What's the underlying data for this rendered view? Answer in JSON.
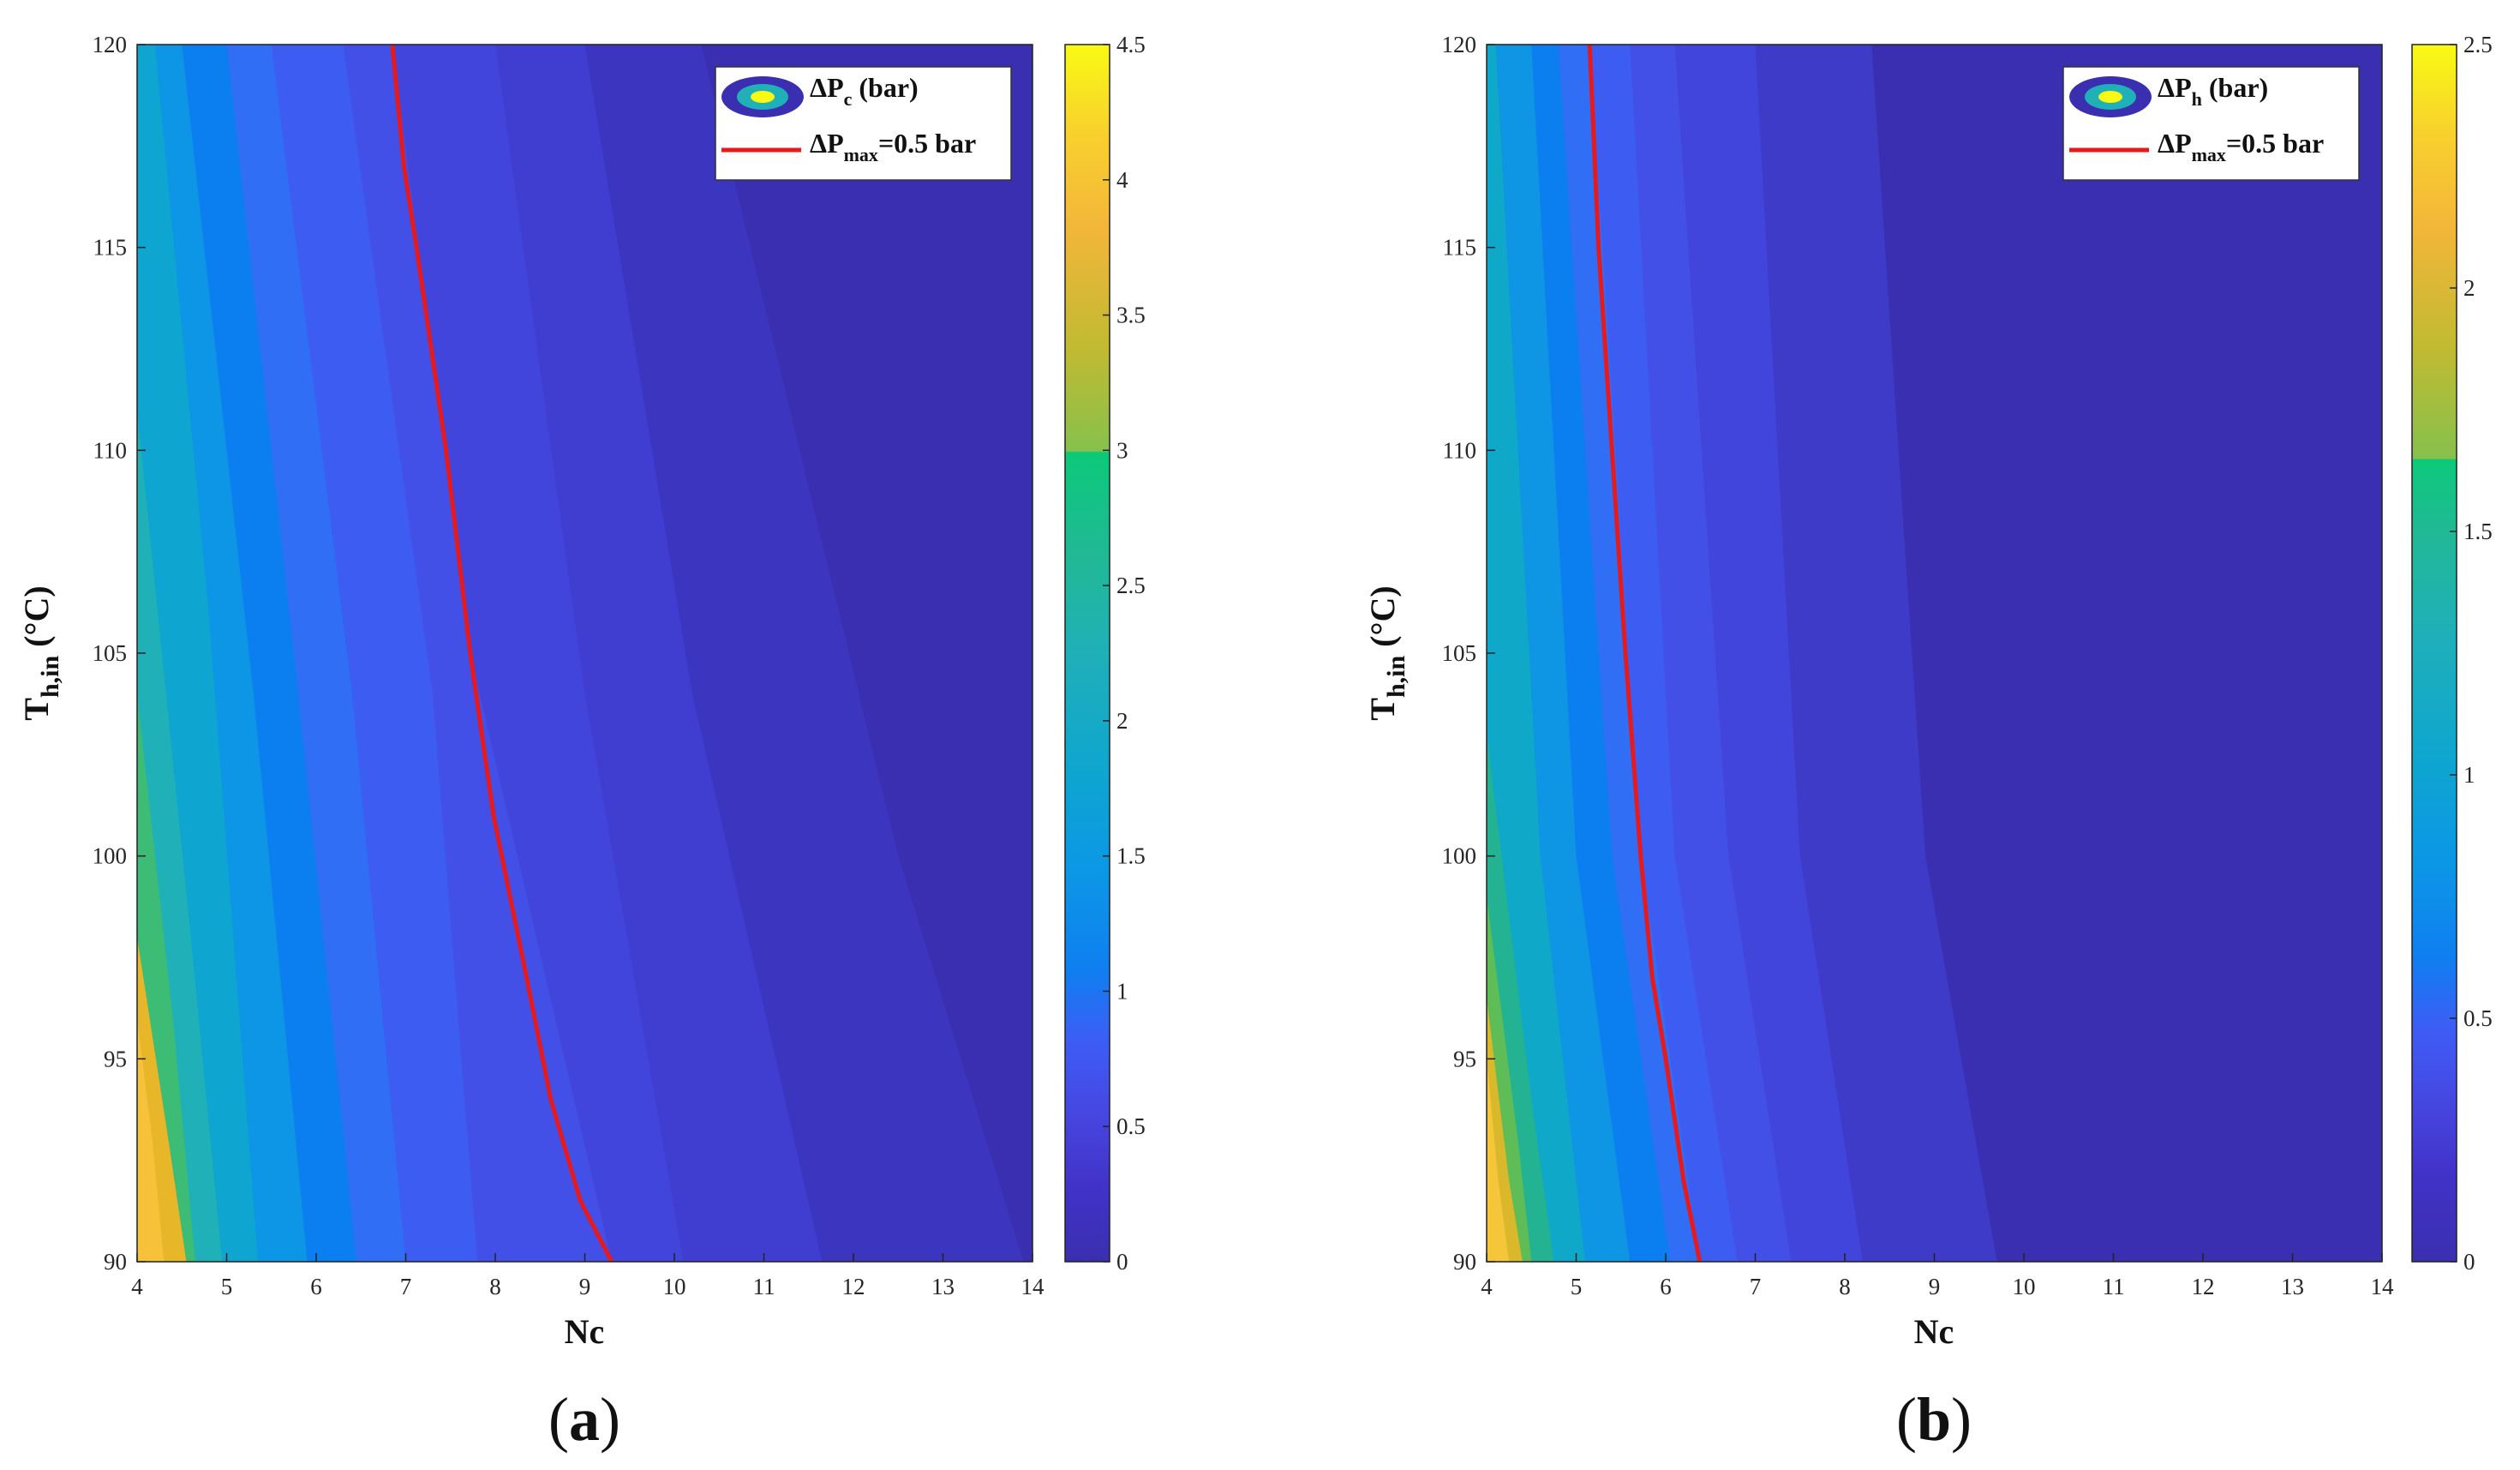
{
  "chart_data": [
    {
      "type": "contour",
      "panel_label": "(a)",
      "panel_letter": "a",
      "xlabel": "Nc",
      "ylabel": {
        "base": "T",
        "sub": "h,in",
        "unit": "(°C)"
      },
      "xlim": [
        4,
        14
      ],
      "ylim": [
        90,
        120
      ],
      "x_ticks": [
        "4",
        "5",
        "6",
        "7",
        "8",
        "9",
        "10",
        "11",
        "12",
        "13",
        "14"
      ],
      "y_ticks": [
        "90",
        "95",
        "100",
        "105",
        "110",
        "115",
        "120"
      ],
      "colorbar": {
        "range": [
          0,
          4.5
        ],
        "ticks": [
          "0",
          "0.5",
          "1",
          "1.5",
          "2",
          "2.5",
          "3",
          "3.5",
          "4",
          "4.5"
        ]
      },
      "legend": {
        "contour_entry": {
          "prefix": "ΔP",
          "sub": "c",
          "suffix": " (bar)"
        },
        "line_entry": {
          "prefix": "ΔP",
          "sub": "max",
          "suffix": "=0.5 bar"
        }
      },
      "constraint_line": {
        "label": "ΔPmax=0.5 bar",
        "color": "#e8191b",
        "points": [
          [
            6.85,
            120
          ],
          [
            6.98,
            117
          ],
          [
            7.12,
            115
          ],
          [
            7.45,
            110
          ],
          [
            7.72,
            105
          ],
          [
            7.98,
            101
          ],
          [
            8.35,
            97
          ],
          [
            8.62,
            94
          ],
          [
            8.95,
            91.5
          ],
          [
            9.3,
            90
          ]
        ]
      },
      "contour_bands": [
        {
          "color": "#f7c23a",
          "level_label": "ΔP ≈ 4.0",
          "boundary": [
            [
              4.0,
              96
            ],
            [
              4.17,
              93
            ],
            [
              4.3,
              90
            ]
          ]
        },
        {
          "color": "#e7b629",
          "level_label": "ΔP ≈ 3.5",
          "boundary": [
            [
              4.0,
              98
            ],
            [
              4.35,
              93
            ],
            [
              4.55,
              90
            ]
          ]
        },
        {
          "color": "#3cbc74",
          "level_label": "ΔP ≈ 2.5",
          "boundary": [
            [
              4.0,
              104
            ],
            [
              4.4,
              96
            ],
            [
              4.65,
              90
            ]
          ]
        },
        {
          "color": "#1fb0b8",
          "level_label": "ΔP ≈ 2.0",
          "boundary": [
            [
              4.0,
              111
            ],
            [
              4.6,
              98
            ],
            [
              4.95,
              90
            ]
          ]
        },
        {
          "color": "#0ea5d0",
          "level_label": "ΔP ≈ 1.75",
          "boundary": [
            [
              4.2,
              120
            ],
            [
              4.8,
              106
            ],
            [
              5.35,
              90
            ]
          ]
        },
        {
          "color": "#0d95e6",
          "level_label": "ΔP ≈ 1.5",
          "boundary": [
            [
              4.5,
              120
            ],
            [
              5.3,
              104
            ],
            [
              5.9,
              90
            ]
          ]
        },
        {
          "color": "#0c7ff0",
          "level_label": "ΔP ≈ 1.0",
          "boundary": [
            [
              5.0,
              120
            ],
            [
              5.8,
              104
            ],
            [
              6.45,
              90
            ]
          ]
        },
        {
          "color": "#2f6ef5",
          "level_label": "ΔP ≈ 0.75",
          "boundary": [
            [
              5.5,
              120
            ],
            [
              6.4,
              104
            ],
            [
              7.0,
              90
            ]
          ]
        },
        {
          "color": "#3d5cf2",
          "level_label": "ΔP ≈ 0.625",
          "boundary": [
            [
              6.3,
              120
            ],
            [
              7.3,
              104
            ],
            [
              7.8,
              90
            ]
          ]
        },
        {
          "color": "#4350e8",
          "level_label": "ΔP ≈ 0.5",
          "boundary": [
            [
              6.85,
              120
            ],
            [
              7.72,
              105
            ],
            [
              9.3,
              90
            ]
          ]
        },
        {
          "color": "#4245dc",
          "level_label": "ΔP ≈ 0.4",
          "boundary": [
            [
              8.0,
              120
            ],
            [
              9.0,
              104
            ],
            [
              10.1,
              90
            ]
          ]
        },
        {
          "color": "#3f3ed0",
          "level_label": "ΔP ≈ 0.3",
          "boundary": [
            [
              9.0,
              120
            ],
            [
              10.2,
              104
            ],
            [
              11.65,
              90
            ]
          ]
        },
        {
          "color": "#3b35c0",
          "level_label": "ΔP ≈ 0.2",
          "boundary": [
            [
              10.3,
              120
            ],
            [
              12.5,
              100
            ],
            [
              13.9,
              90
            ]
          ]
        }
      ],
      "base_color": "#3a2fb0"
    },
    {
      "type": "contour",
      "panel_label": "(b)",
      "panel_letter": "b",
      "xlabel": "Nc",
      "ylabel": {
        "base": "T",
        "sub": "h,in",
        "unit": "(°C)"
      },
      "xlim": [
        4,
        14
      ],
      "ylim": [
        90,
        120
      ],
      "x_ticks": [
        "4",
        "5",
        "6",
        "7",
        "8",
        "9",
        "10",
        "11",
        "12",
        "13",
        "14"
      ],
      "y_ticks": [
        "90",
        "95",
        "100",
        "105",
        "110",
        "115",
        "120"
      ],
      "colorbar": {
        "range": [
          0,
          2.5
        ],
        "ticks": [
          "0",
          "0.5",
          "1",
          "1.5",
          "2",
          "2.5"
        ]
      },
      "legend": {
        "contour_entry": {
          "prefix": "ΔP",
          "sub": "h",
          "suffix": " (bar)"
        },
        "line_entry": {
          "prefix": "ΔP",
          "sub": "max",
          "suffix": "=0.5 bar"
        }
      },
      "constraint_line": {
        "label": "ΔPmax=0.5 bar",
        "color": "#e8191b",
        "points": [
          [
            5.15,
            120
          ],
          [
            5.25,
            115
          ],
          [
            5.4,
            110
          ],
          [
            5.55,
            105
          ],
          [
            5.72,
            100
          ],
          [
            5.85,
            97
          ],
          [
            6.0,
            95
          ],
          [
            6.2,
            92
          ],
          [
            6.38,
            90
          ]
        ]
      },
      "contour_bands": [
        {
          "color": "#f5c63a",
          "level_label": "ΔP ≈ 2.0",
          "boundary": [
            [
              4.0,
              95
            ],
            [
              4.13,
              92
            ],
            [
              4.25,
              90
            ]
          ]
        },
        {
          "color": "#d9b82b",
          "level_label": "ΔP ≈ 1.75",
          "boundary": [
            [
              4.0,
              96.5
            ],
            [
              4.25,
              92
            ],
            [
              4.4,
              90
            ]
          ]
        },
        {
          "color": "#5fbd57",
          "level_label": "ΔP ≈ 1.5",
          "boundary": [
            [
              4.0,
              99
            ],
            [
              4.35,
              93
            ],
            [
              4.5,
              90
            ]
          ]
        },
        {
          "color": "#23b292",
          "level_label": "ΔP ≈ 1.25",
          "boundary": [
            [
              4.0,
              103
            ],
            [
              4.5,
              94
            ],
            [
              4.75,
              90
            ]
          ]
        },
        {
          "color": "#0fa8c8",
          "level_label": "ΔP ≈ 1.0",
          "boundary": [
            [
              4.1,
              120
            ],
            [
              4.6,
              100
            ],
            [
              5.1,
              90
            ]
          ]
        },
        {
          "color": "#0e95e4",
          "level_label": "ΔP ≈ 0.75",
          "boundary": [
            [
              4.5,
              120
            ],
            [
              5.0,
              100
            ],
            [
              5.6,
              90
            ]
          ]
        },
        {
          "color": "#0c7ff0",
          "level_label": "ΔP ≈ 0.625",
          "boundary": [
            [
              4.8,
              120
            ],
            [
              5.4,
              100
            ],
            [
              6.05,
              90
            ]
          ]
        },
        {
          "color": "#2f6ef5",
          "level_label": "ΔP ≈ 0.5",
          "boundary": [
            [
              5.15,
              120
            ],
            [
              5.72,
              100
            ],
            [
              6.38,
              90
            ]
          ]
        },
        {
          "color": "#3d5cf2",
          "level_label": "ΔP ≈ 0.4",
          "boundary": [
            [
              5.6,
              120
            ],
            [
              6.1,
              100
            ],
            [
              6.8,
              90
            ]
          ]
        },
        {
          "color": "#4350e8",
          "level_label": "ΔP ≈ 0.3",
          "boundary": [
            [
              6.1,
              120
            ],
            [
              6.7,
              100
            ],
            [
              7.4,
              90
            ]
          ]
        },
        {
          "color": "#4245dc",
          "level_label": "ΔP ≈ 0.25",
          "boundary": [
            [
              7.0,
              120
            ],
            [
              7.5,
              100
            ],
            [
              8.2,
              90
            ]
          ]
        },
        {
          "color": "#3d3bc8",
          "level_label": "ΔP ≈ 0.15",
          "boundary": [
            [
              8.3,
              120
            ],
            [
              8.9,
              100
            ],
            [
              9.7,
              90
            ]
          ]
        }
      ],
      "base_color": "#3a2fb0"
    }
  ]
}
